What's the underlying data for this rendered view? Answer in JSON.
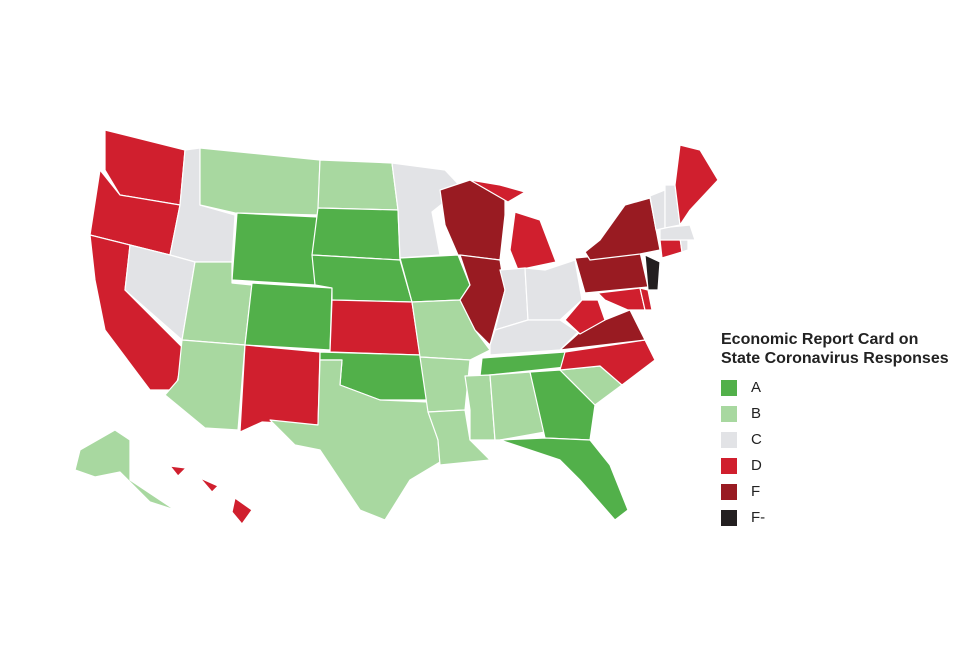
{
  "legend": {
    "title_lines": [
      "Economic Report Card on",
      "State Coronavirus Responses"
    ],
    "items": [
      {
        "label": "A",
        "color": "#52b04a"
      },
      {
        "label": "B",
        "color": "#a8d8a0"
      },
      {
        "label": "C",
        "color": "#e2e3e6"
      },
      {
        "label": "D",
        "color": "#d01f2e"
      },
      {
        "label": "F",
        "color": "#991b22"
      },
      {
        "label": "F-",
        "color": "#231f20"
      }
    ]
  }
}
